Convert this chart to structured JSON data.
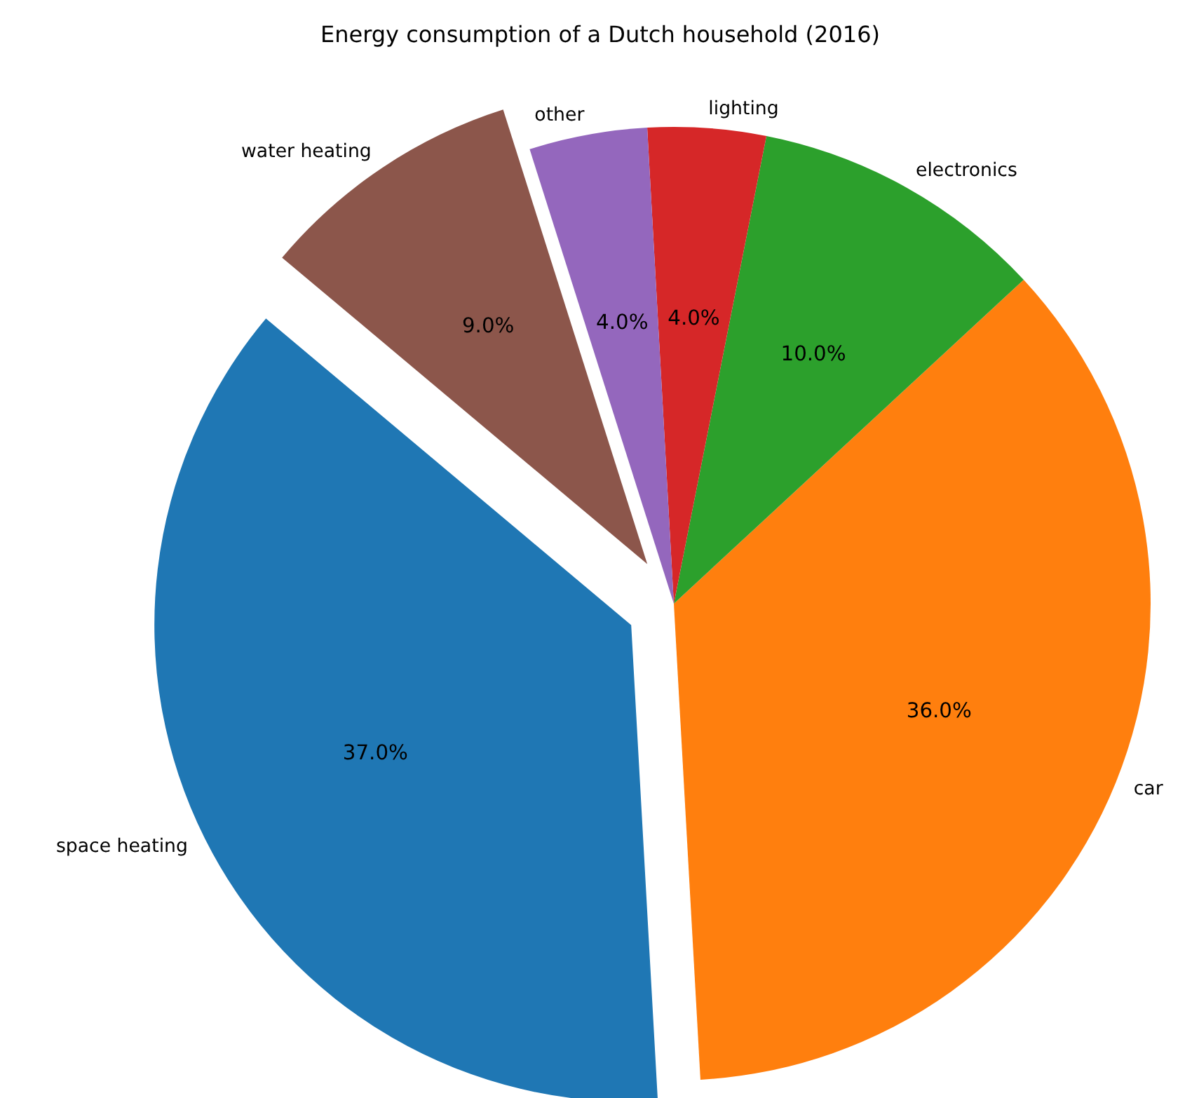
{
  "chart_data": {
    "type": "pie",
    "title": "Energy consumption of a Dutch household (2016)",
    "categories": [
      "space heating",
      "car",
      "electronics",
      "lighting",
      "other",
      "water heating"
    ],
    "values": [
      37,
      36,
      10,
      4,
      4,
      9
    ],
    "colors": [
      "#1f77b4",
      "#ff7f0e",
      "#2ca02c",
      "#d62728",
      "#9467bd",
      "#8c564b"
    ],
    "value_labels": [
      "37.0%",
      "36.0%",
      "10.0%",
      "4.0%",
      "4.0%",
      "9.0%"
    ]
  }
}
